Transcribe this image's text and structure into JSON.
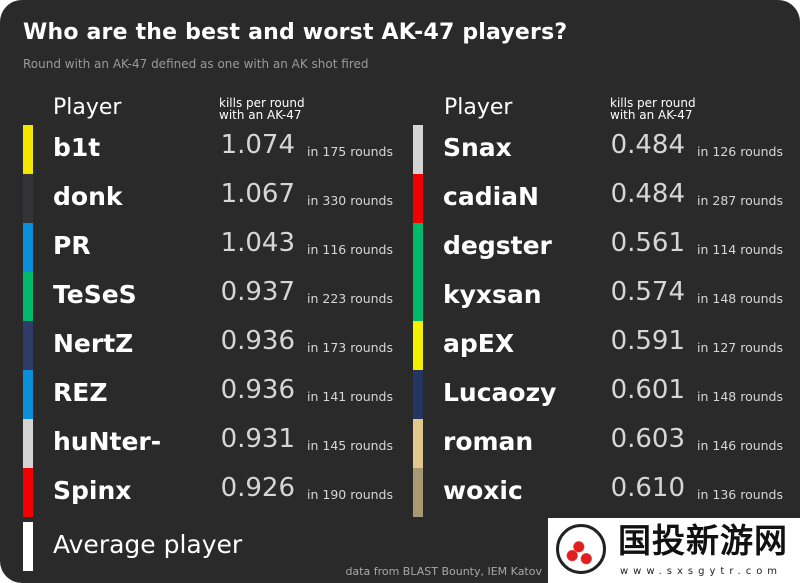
{
  "chart_data": {
    "type": "table",
    "title": "Who are the best and worst AK-47 players?",
    "subtitle": "Round with an AK-47 defined as one with an AK shot fired",
    "columns": {
      "player": "Player",
      "kpr_line1": "kills per round",
      "kpr_line2": "with an AK-47"
    },
    "left": [
      {
        "player": "b1t",
        "kpr": "1.074",
        "rounds": "in 175 rounds",
        "color": "#f5e600"
      },
      {
        "player": "donk",
        "kpr": "1.067",
        "rounds": "in 330 rounds",
        "color": "#333338"
      },
      {
        "player": "PR",
        "kpr": "1.043",
        "rounds": "in 116 rounds",
        "color": "#0a90d8"
      },
      {
        "player": "TeSeS",
        "kpr": "0.937",
        "rounds": "in 223 rounds",
        "color": "#00b86a"
      },
      {
        "player": "NertZ",
        "kpr": "0.936",
        "rounds": "in 173 rounds",
        "color": "#2e3c68"
      },
      {
        "player": "REZ",
        "kpr": "0.936",
        "rounds": "in 141 rounds",
        "color": "#0a90d8"
      },
      {
        "player": "huNter-",
        "kpr": "0.931",
        "rounds": "in 145 rounds",
        "color": "#d4d4d4"
      },
      {
        "player": "Spinx",
        "kpr": "0.926",
        "rounds": "in 190 rounds",
        "color": "#f00000"
      }
    ],
    "right": [
      {
        "player": "Snax",
        "kpr": "0.484",
        "rounds": "in 126 rounds",
        "color": "#d4d4d4"
      },
      {
        "player": "cadiaN",
        "kpr": "0.484",
        "rounds": "in 287 rounds",
        "color": "#f00000"
      },
      {
        "player": "degster",
        "kpr": "0.561",
        "rounds": "in 114 rounds",
        "color": "#00b86a"
      },
      {
        "player": "kyxsan",
        "kpr": "0.574",
        "rounds": "in 148 rounds",
        "color": "#00b86a"
      },
      {
        "player": "apEX",
        "kpr": "0.591",
        "rounds": "in 127 rounds",
        "color": "#f5f000"
      },
      {
        "player": "Lucaozy",
        "kpr": "0.601",
        "rounds": "in 148 rounds",
        "color": "#253561"
      },
      {
        "player": "roman",
        "kpr": "0.603",
        "rounds": "in 146 rounds",
        "color": "#e2c88e"
      },
      {
        "player": "woxic",
        "kpr": "0.610",
        "rounds": "in 136 rounds",
        "color": "#a89874"
      }
    ],
    "average": {
      "label": "Average player",
      "color": "#ffffff"
    },
    "source": "data from BLAST Bounty, IEM Katov"
  },
  "watermark": {
    "text": "国投新游网",
    "url": "www.sxsgytr.com"
  }
}
